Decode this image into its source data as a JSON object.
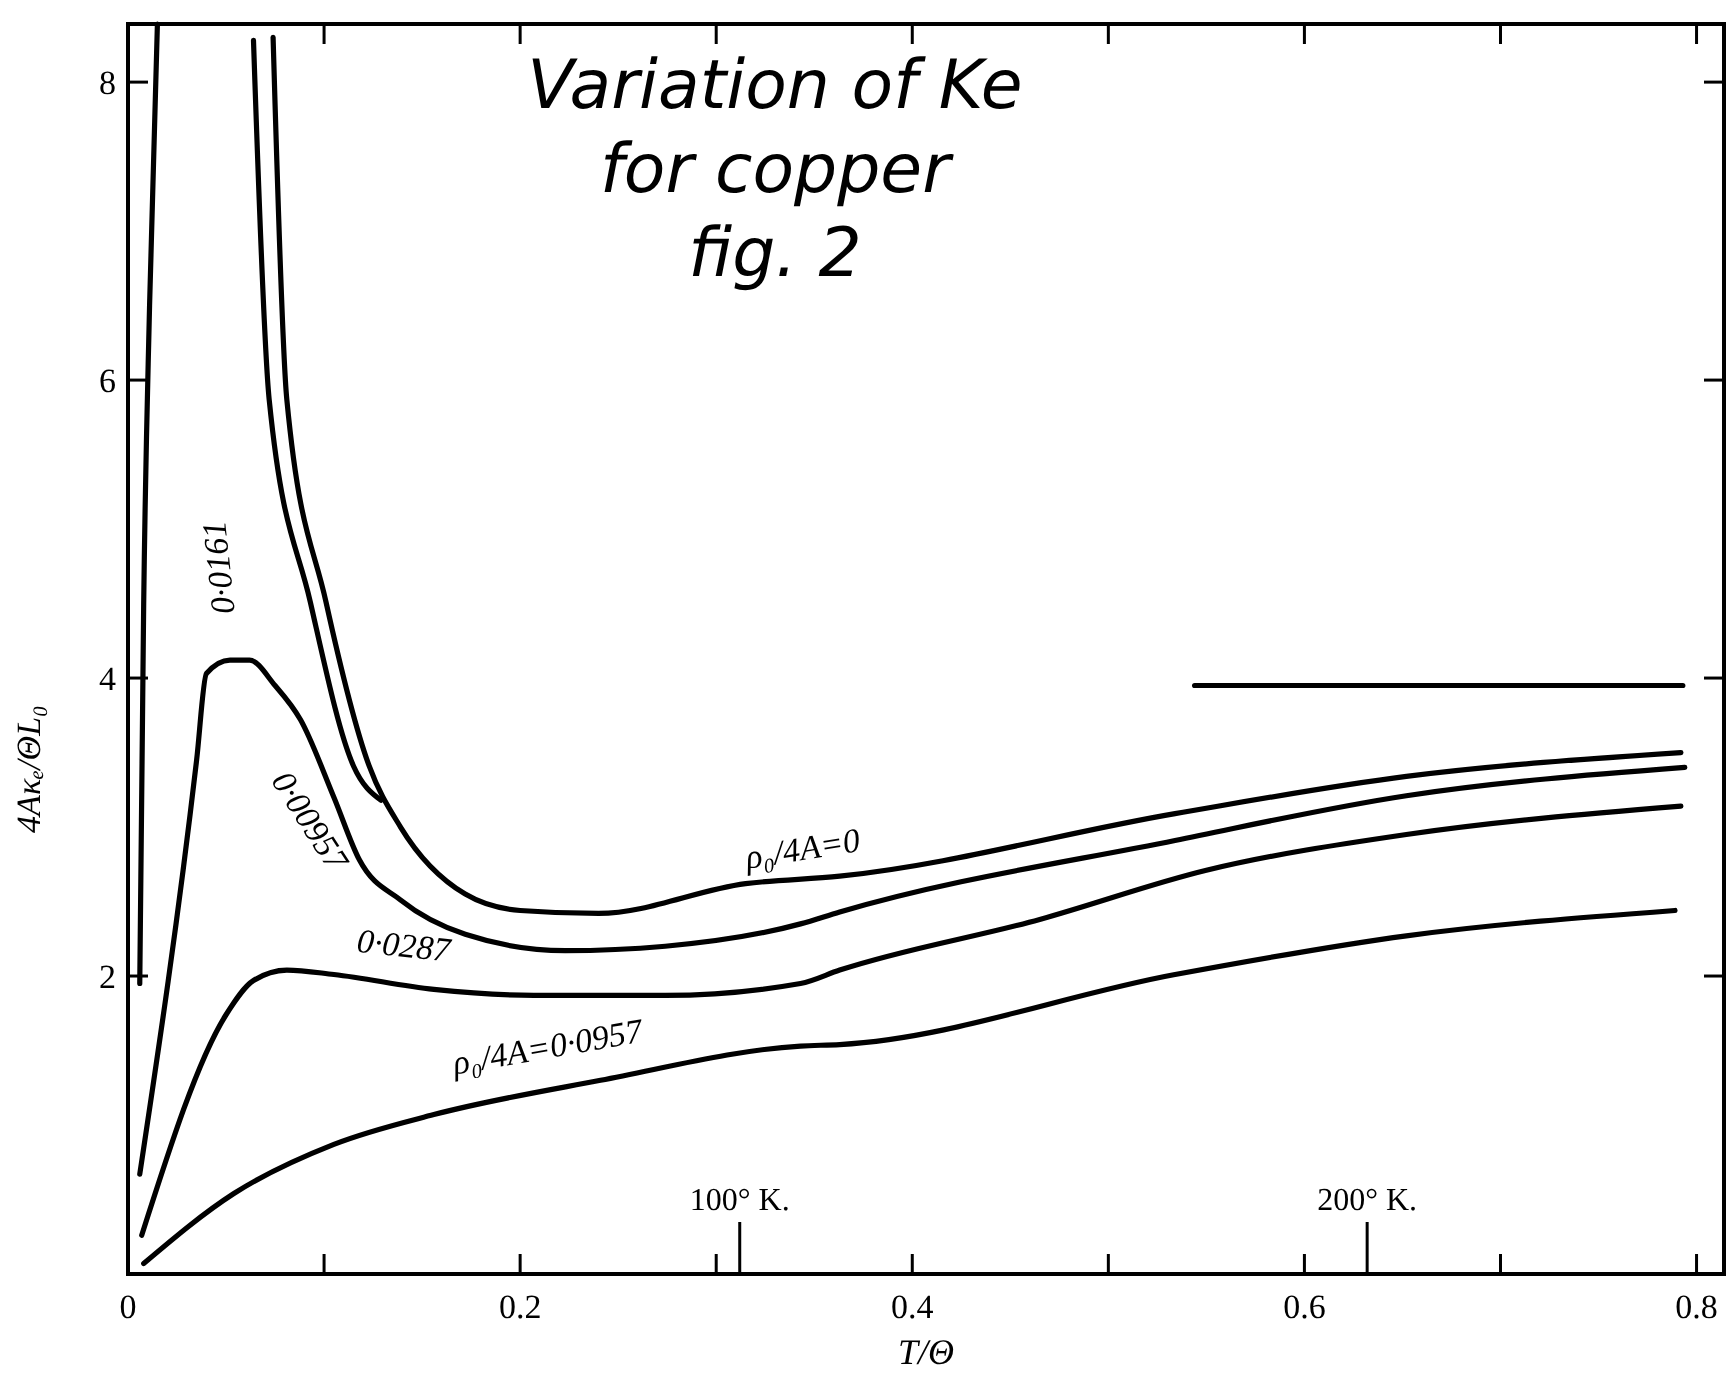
{
  "chart_data": {
    "type": "line",
    "title": "Variation of Ke\nfor copper\nfig. 2",
    "xlabel": "T/Θ",
    "ylabel": "4Aκₑ/ΘL₀",
    "xlim": [
      0,
      0.814
    ],
    "ylim": [
      0,
      8.39
    ],
    "xticks": [
      0,
      {
        "value": 0.1,
        "label": null
      },
      0.2,
      {
        "value": 0.3,
        "label": null
      },
      0.4,
      {
        "value": 0.5,
        "label": null
      },
      0.6,
      {
        "value": 0.7,
        "label": null
      },
      0.8
    ],
    "ref_lines": [
      {
        "axis": "x",
        "value": 0.312,
        "label": "100° K.",
        "color": "#000000"
      },
      {
        "axis": "x",
        "value": 0.632,
        "label": "200° K.",
        "color": "#000000"
      }
    ],
    "yticks": [
      2,
      4,
      6,
      8
    ],
    "grid": false,
    "marker": "none",
    "line_style": "solid",
    "series": [
      {
        "name": "ρ₀/4A=0",
        "color": "#000000",
        "x": [
          0.074,
          0.081,
          0.101,
          0.123,
          0.139,
          0.172,
          0.2,
          0.24,
          0.315,
          0.363,
          0.534,
          0.652,
          0.792
        ],
        "values": [
          8.3,
          5.87,
          4.51,
          3.41,
          3.0,
          2.55,
          2.44,
          2.42,
          2.62,
          2.67,
          3.09,
          3.34,
          3.5
        ]
      },
      {
        "name": "0·0161",
        "color": "#000000",
        "x": [
          0.064,
          0.072,
          0.093,
          0.115,
          0.129
        ],
        "values": [
          8.28,
          5.87,
          4.51,
          3.41,
          3.18
        ]
      },
      {
        "name": "0·00957",
        "color": "#000000",
        "x": [
          0.006,
          0.035,
          0.04,
          0.052,
          0.062,
          0.075,
          0.088,
          0.105,
          0.118,
          0.139,
          0.172,
          0.223,
          0.274,
          0.343,
          0.363,
          0.534,
          0.652,
          0.794
        ],
        "values": [
          0.67,
          3.45,
          4.03,
          4.12,
          4.12,
          3.95,
          3.72,
          3.2,
          2.78,
          2.51,
          2.28,
          2.17,
          2.2,
          2.35,
          2.43,
          2.91,
          3.21,
          3.4
        ]
      },
      {
        "name": "0·0287",
        "color": "#000000",
        "x": [
          0.007,
          0.05,
          0.064,
          0.081,
          0.105,
          0.156,
          0.207,
          0.274,
          0.343,
          0.363,
          0.465,
          0.55,
          0.652,
          0.792
        ],
        "values": [
          0.26,
          1.74,
          1.97,
          2.04,
          2.01,
          1.91,
          1.87,
          1.87,
          1.95,
          2.04,
          2.38,
          2.71,
          2.95,
          3.14
        ]
      },
      {
        "name": "ρ₀/4A=0·0957",
        "color": "#000000",
        "x": [
          0.008,
          0.054,
          0.105,
          0.156,
          0.241,
          0.343,
          0.363,
          0.534,
          0.652,
          0.789
        ],
        "values": [
          0.07,
          0.54,
          0.87,
          1.07,
          1.3,
          1.53,
          1.54,
          2.01,
          2.27,
          2.44
        ]
      },
      {
        "color": "#000000",
        "x": [
          0.006,
          0.008,
          0.011,
          0.015
        ],
        "values": [
          1.95,
          4.5,
          6.5,
          8.39
        ]
      },
      {
        "color": "#000000",
        "x": [
          0.544,
          0.793
        ],
        "values": [
          3.95,
          3.95
        ]
      }
    ]
  }
}
